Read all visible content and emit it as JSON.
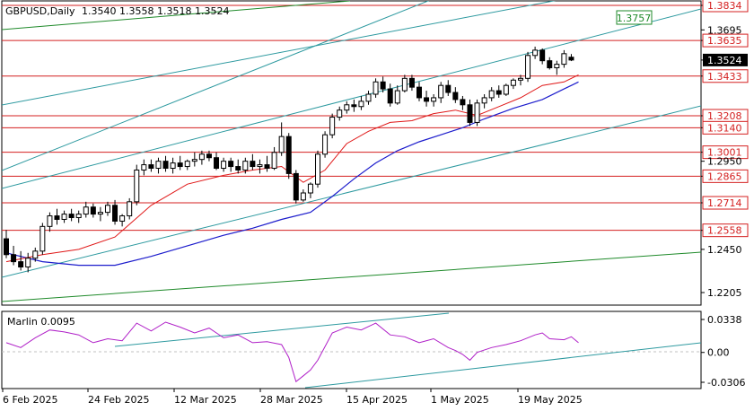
{
  "header": {
    "symbol": "GBPUSD,Daily",
    "ohlc": "1.3540 1.3558 1.3518 1.3524"
  },
  "indicator": {
    "label": "Marlin 0.0095",
    "levels": [
      "0.0338",
      "0.00",
      "-0.0306"
    ]
  },
  "x_labels": [
    "6 Feb 2025",
    "24 Feb 2025",
    "12 Mar 2025",
    "28 Mar 2025",
    "15 Apr 2025",
    "1 May 2025",
    "19 May 2025"
  ],
  "price_axis": [
    "1.3834",
    "1.3695",
    "1.3635",
    "1.3524",
    "1.3433",
    "1.3208",
    "1.3140",
    "1.3001",
    "1.2950",
    "1.2865",
    "1.2714",
    "1.2558",
    "1.2450",
    "1.2205"
  ],
  "colors": {
    "up": "#000000",
    "down": "#000000",
    "red_level": "#d42020",
    "channel": "#2e9aa0",
    "green_line": "#1f8a2a",
    "red_ma": "#e01818",
    "blue_ma": "#1c1ccc",
    "marlin": "#b020c8"
  },
  "chart_data": {
    "type": "candlestick",
    "title": "GBPUSD,Daily",
    "current_price": 1.3524,
    "ylim": [
      1.215,
      1.386
    ],
    "target_label": "1.3757",
    "horizontal_levels": [
      1.3834,
      1.3635,
      1.3433,
      1.3208,
      1.314,
      1.3001,
      1.2865,
      1.2714,
      1.2558
    ],
    "candles": [
      [
        1.251,
        1.256,
        1.24,
        1.242
      ],
      [
        1.242,
        1.247,
        1.236,
        1.238
      ],
      [
        1.238,
        1.244,
        1.233,
        1.235
      ],
      [
        1.235,
        1.243,
        1.232,
        1.24
      ],
      [
        1.24,
        1.246,
        1.238,
        1.244
      ],
      [
        1.244,
        1.26,
        1.242,
        1.258
      ],
      [
        1.258,
        1.266,
        1.255,
        1.264
      ],
      [
        1.264,
        1.268,
        1.259,
        1.262
      ],
      [
        1.262,
        1.267,
        1.26,
        1.265
      ],
      [
        1.265,
        1.268,
        1.261,
        1.263
      ],
      [
        1.263,
        1.267,
        1.26,
        1.265
      ],
      [
        1.265,
        1.272,
        1.263,
        1.269
      ],
      [
        1.269,
        1.271,
        1.263,
        1.265
      ],
      [
        1.265,
        1.269,
        1.261,
        1.266
      ],
      [
        1.266,
        1.272,
        1.264,
        1.27
      ],
      [
        1.27,
        1.273,
        1.259,
        1.261
      ],
      [
        1.261,
        1.265,
        1.258,
        1.264
      ],
      [
        1.264,
        1.274,
        1.262,
        1.272
      ],
      [
        1.272,
        1.293,
        1.27,
        1.29
      ],
      [
        1.29,
        1.296,
        1.287,
        1.293
      ],
      [
        1.293,
        1.296,
        1.289,
        1.291
      ],
      [
        1.291,
        1.297,
        1.288,
        1.295
      ],
      [
        1.295,
        1.298,
        1.289,
        1.291
      ],
      [
        1.291,
        1.297,
        1.288,
        1.294
      ],
      [
        1.294,
        1.298,
        1.29,
        1.292
      ],
      [
        1.292,
        1.296,
        1.29,
        1.295
      ],
      [
        1.295,
        1.3,
        1.292,
        1.296
      ],
      [
        1.296,
        1.301,
        1.293,
        1.299
      ],
      [
        1.299,
        1.301,
        1.295,
        1.297
      ],
      [
        1.297,
        1.3,
        1.29,
        1.291
      ],
      [
        1.291,
        1.297,
        1.289,
        1.295
      ],
      [
        1.295,
        1.297,
        1.289,
        1.292
      ],
      [
        1.292,
        1.296,
        1.288,
        1.29
      ],
      [
        1.29,
        1.297,
        1.288,
        1.295
      ],
      [
        1.295,
        1.299,
        1.29,
        1.292
      ],
      [
        1.292,
        1.296,
        1.288,
        1.293
      ],
      [
        1.293,
        1.298,
        1.289,
        1.291
      ],
      [
        1.291,
        1.303,
        1.29,
        1.3
      ],
      [
        1.3,
        1.317,
        1.298,
        1.309
      ],
      [
        1.309,
        1.311,
        1.285,
        1.288
      ],
      [
        1.288,
        1.29,
        1.271,
        1.273
      ],
      [
        1.273,
        1.279,
        1.272,
        1.277
      ],
      [
        1.277,
        1.283,
        1.274,
        1.282
      ],
      [
        1.282,
        1.301,
        1.28,
        1.299
      ],
      [
        1.299,
        1.312,
        1.297,
        1.31
      ],
      [
        1.31,
        1.322,
        1.308,
        1.32
      ],
      [
        1.32,
        1.326,
        1.318,
        1.324
      ],
      [
        1.324,
        1.329,
        1.322,
        1.327
      ],
      [
        1.327,
        1.33,
        1.323,
        1.326
      ],
      [
        1.326,
        1.332,
        1.324,
        1.329
      ],
      [
        1.329,
        1.335,
        1.327,
        1.333
      ],
      [
        1.333,
        1.342,
        1.331,
        1.34
      ],
      [
        1.34,
        1.343,
        1.334,
        1.336
      ],
      [
        1.336,
        1.339,
        1.326,
        1.328
      ],
      [
        1.328,
        1.338,
        1.327,
        1.335
      ],
      [
        1.335,
        1.344,
        1.334,
        1.342
      ],
      [
        1.342,
        1.344,
        1.335,
        1.337
      ],
      [
        1.337,
        1.34,
        1.329,
        1.331
      ],
      [
        1.331,
        1.335,
        1.326,
        1.329
      ],
      [
        1.329,
        1.333,
        1.326,
        1.331
      ],
      [
        1.331,
        1.34,
        1.328,
        1.338
      ],
      [
        1.338,
        1.341,
        1.332,
        1.334
      ],
      [
        1.334,
        1.337,
        1.328,
        1.33
      ],
      [
        1.33,
        1.332,
        1.324,
        1.327
      ],
      [
        1.327,
        1.33,
        1.315,
        1.317
      ],
      [
        1.317,
        1.33,
        1.315,
        1.328
      ],
      [
        1.328,
        1.333,
        1.325,
        1.331
      ],
      [
        1.331,
        1.337,
        1.329,
        1.335
      ],
      [
        1.335,
        1.338,
        1.331,
        1.333
      ],
      [
        1.333,
        1.339,
        1.332,
        1.338
      ],
      [
        1.338,
        1.342,
        1.336,
        1.341
      ],
      [
        1.341,
        1.344,
        1.338,
        1.342
      ],
      [
        1.342,
        1.357,
        1.34,
        1.355
      ],
      [
        1.355,
        1.36,
        1.353,
        1.358
      ],
      [
        1.358,
        1.359,
        1.35,
        1.352
      ],
      [
        1.352,
        1.354,
        1.347,
        1.348
      ],
      [
        1.348,
        1.352,
        1.344,
        1.35
      ],
      [
        1.35,
        1.358,
        1.348,
        1.356
      ],
      [
        1.354,
        1.3558,
        1.3518,
        1.3524
      ]
    ],
    "ma_red": [
      [
        0,
        1.238
      ],
      [
        5,
        1.242
      ],
      [
        10,
        1.245
      ],
      [
        15,
        1.252
      ],
      [
        20,
        1.27
      ],
      [
        25,
        1.282
      ],
      [
        30,
        1.287
      ],
      [
        34,
        1.29
      ],
      [
        38,
        1.292
      ],
      [
        41,
        1.283
      ],
      [
        44,
        1.29
      ],
      [
        47,
        1.305
      ],
      [
        50,
        1.312
      ],
      [
        53,
        1.317
      ],
      [
        56,
        1.318
      ],
      [
        59,
        1.322
      ],
      [
        62,
        1.324
      ],
      [
        65,
        1.321
      ],
      [
        68,
        1.326
      ],
      [
        71,
        1.331
      ],
      [
        74,
        1.338
      ],
      [
        77,
        1.34
      ],
      [
        79,
        1.344
      ]
    ],
    "ma_blue": [
      [
        0,
        1.243
      ],
      [
        5,
        1.238
      ],
      [
        10,
        1.236
      ],
      [
        15,
        1.236
      ],
      [
        20,
        1.241
      ],
      [
        25,
        1.247
      ],
      [
        30,
        1.253
      ],
      [
        34,
        1.257
      ],
      [
        38,
        1.262
      ],
      [
        42,
        1.266
      ],
      [
        45,
        1.275
      ],
      [
        48,
        1.285
      ],
      [
        51,
        1.294
      ],
      [
        54,
        1.301
      ],
      [
        57,
        1.306
      ],
      [
        60,
        1.31
      ],
      [
        63,
        1.314
      ],
      [
        66,
        1.319
      ],
      [
        70,
        1.325
      ],
      [
        74,
        1.33
      ],
      [
        77,
        1.336
      ],
      [
        79,
        1.34
      ]
    ],
    "marlin": [
      [
        0,
        0.01
      ],
      [
        2,
        0.005
      ],
      [
        4,
        0.015
      ],
      [
        6,
        0.023
      ],
      [
        8,
        0.021
      ],
      [
        10,
        0.018
      ],
      [
        12,
        0.01
      ],
      [
        14,
        0.014
      ],
      [
        16,
        0.012
      ],
      [
        18,
        0.03
      ],
      [
        20,
        0.022
      ],
      [
        22,
        0.031
      ],
      [
        24,
        0.026
      ],
      [
        26,
        0.02
      ],
      [
        28,
        0.025
      ],
      [
        30,
        0.015
      ],
      [
        32,
        0.018
      ],
      [
        34,
        0.01
      ],
      [
        36,
        0.011
      ],
      [
        38,
        0.008
      ],
      [
        39,
        -0.005
      ],
      [
        40,
        -0.03
      ],
      [
        41,
        -0.024
      ],
      [
        42,
        -0.018
      ],
      [
        43,
        -0.008
      ],
      [
        45,
        0.02
      ],
      [
        47,
        0.026
      ],
      [
        49,
        0.023
      ],
      [
        51,
        0.03
      ],
      [
        53,
        0.018
      ],
      [
        55,
        0.016
      ],
      [
        57,
        0.01
      ],
      [
        59,
        0.014
      ],
      [
        61,
        0.005
      ],
      [
        62,
        0.002
      ],
      [
        63,
        -0.002
      ],
      [
        64,
        -0.008
      ],
      [
        65,
        0.0
      ],
      [
        67,
        0.005
      ],
      [
        69,
        0.008
      ],
      [
        71,
        0.012
      ],
      [
        73,
        0.018
      ],
      [
        74,
        0.02
      ],
      [
        75,
        0.014
      ],
      [
        77,
        0.013
      ],
      [
        78,
        0.016
      ],
      [
        79,
        0.01
      ]
    ]
  }
}
